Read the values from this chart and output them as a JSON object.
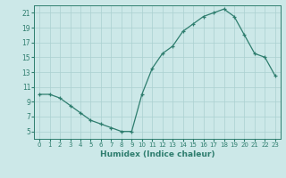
{
  "x_data": [
    0,
    1,
    2,
    3,
    4,
    5,
    6,
    7,
    8,
    9,
    10,
    11,
    12,
    13,
    14,
    15,
    16,
    17,
    18,
    19,
    20,
    21,
    22,
    23
  ],
  "y_data": [
    10.0,
    10.0,
    9.5,
    8.5,
    7.5,
    6.5,
    6.0,
    5.5,
    5.0,
    5.0,
    10.0,
    13.5,
    15.5,
    16.5,
    18.5,
    19.5,
    20.5,
    21.0,
    21.5,
    20.5,
    18.0,
    15.5,
    15.0,
    12.5
  ],
  "line_color": "#2e7d6e",
  "marker_color": "#2e7d6e",
  "bg_color": "#cce8e8",
  "grid_color": "#aad0d0",
  "xlabel": "Humidex (Indice chaleur)",
  "xlim": [
    -0.5,
    23.5
  ],
  "ylim": [
    4,
    22
  ],
  "yticks": [
    5,
    7,
    9,
    11,
    13,
    15,
    17,
    19,
    21
  ],
  "xticks": [
    0,
    1,
    2,
    3,
    4,
    5,
    6,
    7,
    8,
    9,
    10,
    11,
    12,
    13,
    14,
    15,
    16,
    17,
    18,
    19,
    20,
    21,
    22,
    23
  ],
  "xtick_labels": [
    "0",
    "1",
    "2",
    "3",
    "4",
    "5",
    "6",
    "7",
    "8",
    "9",
    "10",
    "11",
    "12",
    "13",
    "14",
    "15",
    "16",
    "17",
    "18",
    "19",
    "20",
    "21",
    "22",
    "23"
  ],
  "ytick_labels": [
    "5",
    "7",
    "9",
    "11",
    "13",
    "15",
    "17",
    "19",
    "21"
  ]
}
